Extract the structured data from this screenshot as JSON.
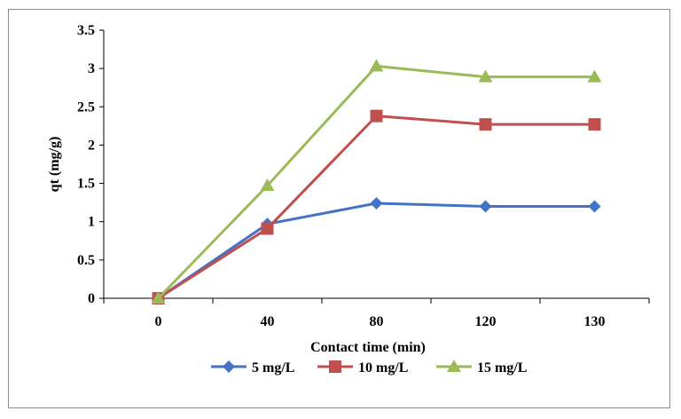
{
  "chart_data": {
    "type": "line",
    "categories": [
      "0",
      "40",
      "80",
      "120",
      "130"
    ],
    "xlabel": "Contact time (min)",
    "ylabel": "qt (mg/g)",
    "ylim": [
      0,
      3.5
    ],
    "ytick_step": 0.5,
    "yticks": [
      "0",
      "0.5",
      "1",
      "1.5",
      "2",
      "2.5",
      "3",
      "3.5"
    ],
    "grid": false,
    "legend": "bottom",
    "series": [
      {
        "name": "5 mg/L",
        "color": "#4472c4",
        "marker": "diamond",
        "values": [
          0,
          0.97,
          1.24,
          1.2,
          1.2
        ]
      },
      {
        "name": "10 mg/L",
        "color": "#c0504d",
        "marker": "square",
        "values": [
          0,
          0.91,
          2.38,
          2.27,
          2.27
        ]
      },
      {
        "name": "15 mg/L",
        "color": "#9bbb59",
        "marker": "triangle",
        "values": [
          0,
          1.47,
          3.03,
          2.89,
          2.89
        ]
      }
    ]
  }
}
